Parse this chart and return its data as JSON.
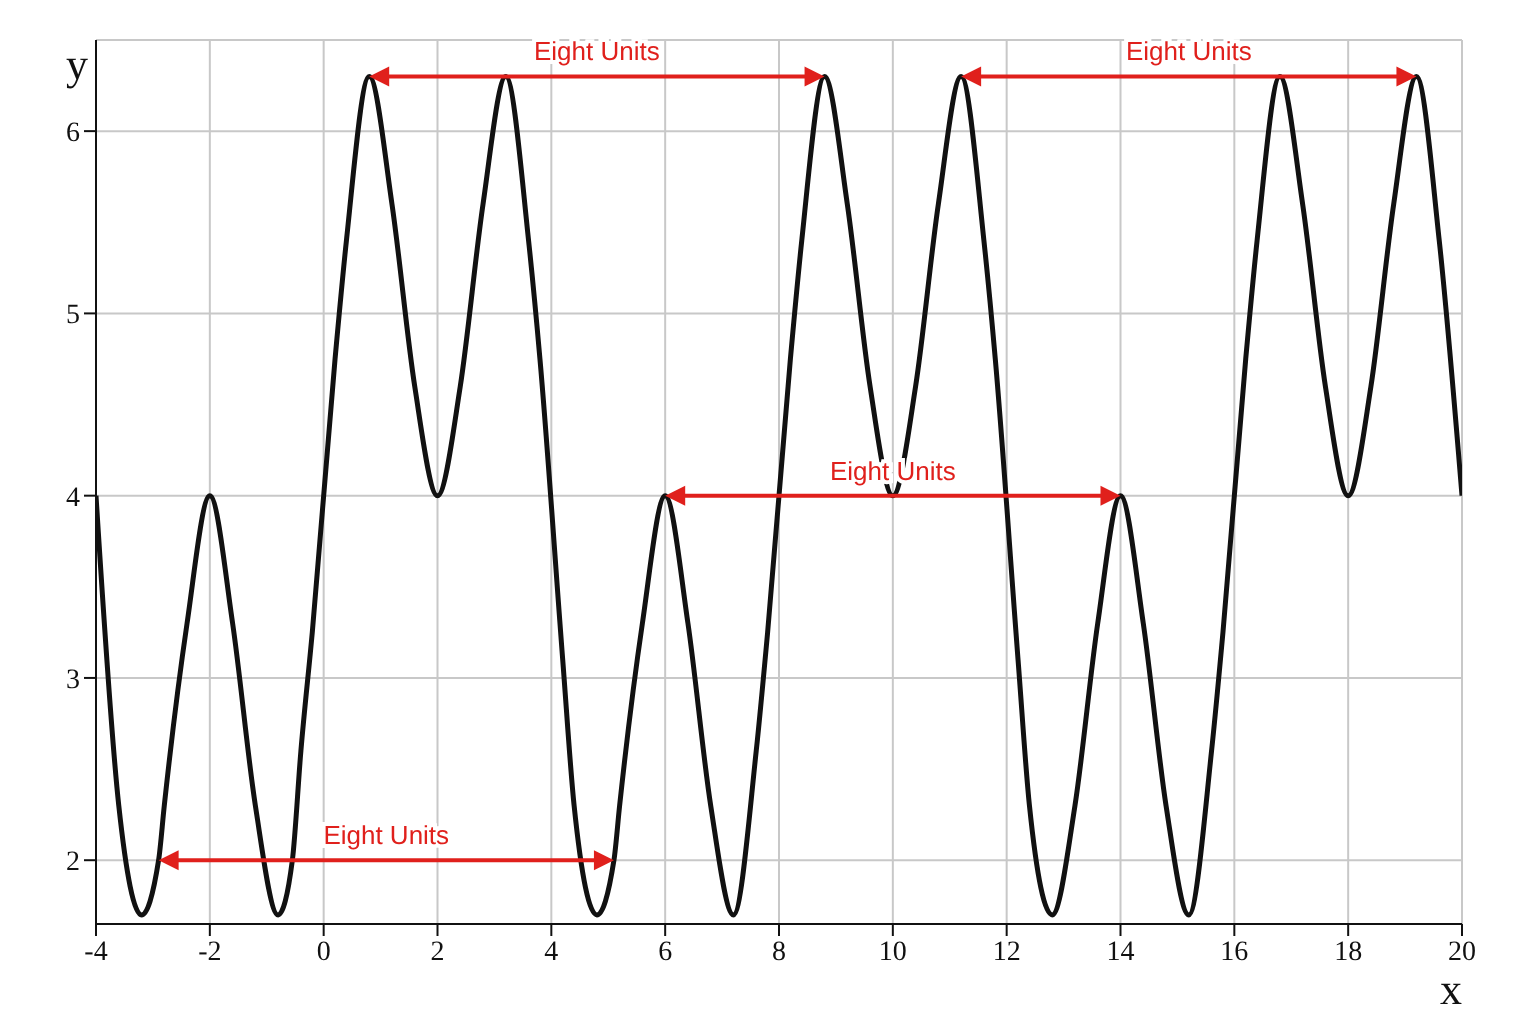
{
  "chart_data": {
    "type": "line",
    "xlabel": "x",
    "ylabel": "y",
    "xlim": [
      -4,
      20
    ],
    "xticks": [
      -4,
      -2,
      0,
      2,
      4,
      6,
      8,
      10,
      12,
      14,
      16,
      18,
      20
    ],
    "ylim": [
      1.65,
      6.5
    ],
    "yticks": [
      2,
      3,
      4,
      5,
      6
    ],
    "grid": true,
    "line_style": "solid",
    "series": [
      {
        "color": "#111111",
        "x": [
          -4,
          -3.6,
          -3.2,
          -2.9,
          -2.8,
          -2.4,
          -2,
          -1.6,
          -1.2,
          -0.8,
          -0.55,
          -0.4,
          -0.2,
          0.2,
          0.4,
          0.8,
          1.2,
          1.6,
          2,
          2.4,
          2.8,
          3.2,
          3.6,
          3.8,
          4.2,
          4.4,
          4.8,
          5.1,
          5.2,
          5.6,
          6,
          6.4,
          6.8,
          7.2,
          7.6,
          7.8,
          8.2,
          8.4,
          8.8,
          9.2,
          9.6,
          10,
          10.4,
          10.8,
          11.2,
          11.6,
          11.8,
          12.2,
          12.4,
          12.8,
          13.2,
          13.6,
          14,
          14.4,
          14.8,
          15.2,
          15.6,
          15.8,
          16.2,
          16.4,
          16.8,
          17.2,
          17.6,
          18,
          18.4,
          18.8,
          19.2,
          19.6,
          20
        ],
        "values": [
          4,
          2.3,
          1.7,
          2,
          2.3,
          3.3,
          4,
          3.3,
          2.3,
          1.7,
          2,
          2.6,
          3.25,
          4.75,
          5.4,
          6.3,
          5.6,
          4.6,
          4,
          4.6,
          5.6,
          6.3,
          5.4,
          4.75,
          3.1,
          2.3,
          1.7,
          2,
          2.3,
          3.3,
          4,
          3.3,
          2.3,
          1.7,
          2.6,
          3.25,
          4.75,
          5.4,
          6.3,
          5.6,
          4.6,
          4,
          4.6,
          5.6,
          6.3,
          5.4,
          4.75,
          3.1,
          2.3,
          1.7,
          2.3,
          3.3,
          4,
          3.3,
          2.3,
          1.7,
          2.6,
          3.25,
          4.75,
          5.4,
          6.3,
          5.6,
          4.6,
          4,
          4.6,
          5.6,
          6.3,
          5.4,
          4
        ]
      }
    ],
    "annotations": [
      "Eight Units",
      "Eight Units",
      "Eight Units",
      "Eight Units"
    ]
  }
}
